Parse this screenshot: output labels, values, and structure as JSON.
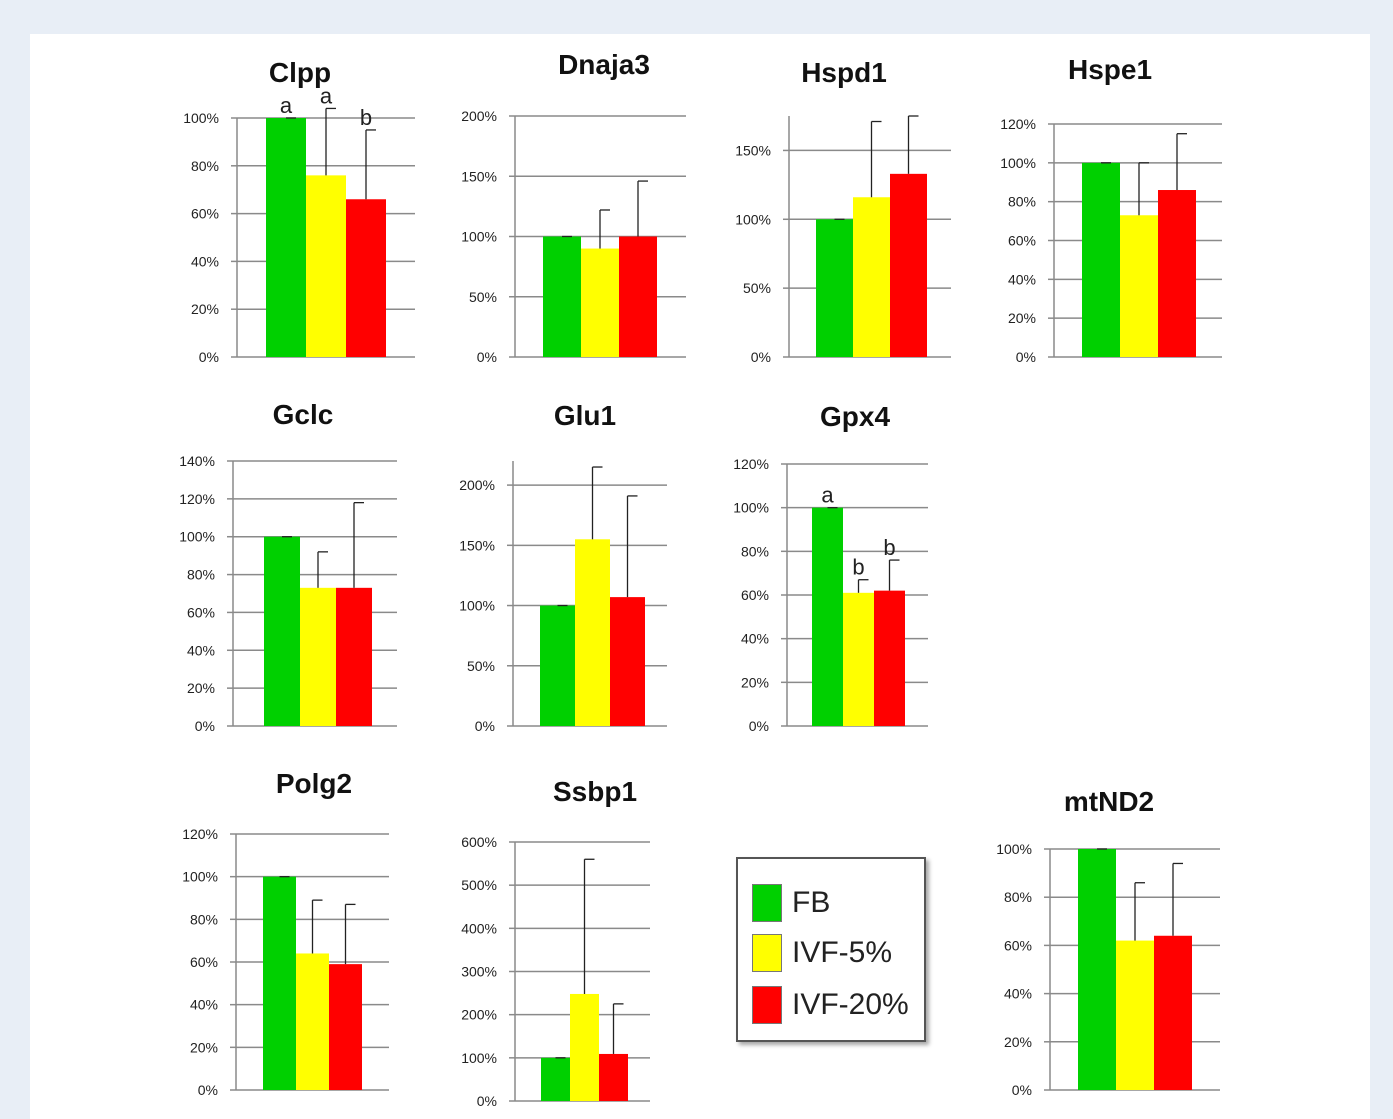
{
  "colors": {
    "FB": "#00d000",
    "IVF-5%": "#ffff00",
    "IVF-20%": "#ff0000"
  },
  "legend": {
    "items": [
      {
        "label": "FB",
        "color": "#00d000"
      },
      {
        "label": "IVF-5%",
        "color": "#ffff00"
      },
      {
        "label": "IVF-20%",
        "color": "#ff0000"
      }
    ]
  },
  "chart_data": [
    {
      "type": "bar",
      "title": "Clpp",
      "categories": [
        "FB",
        "IVF-5%",
        "IVF-20%"
      ],
      "values": [
        100,
        76,
        66
      ],
      "errors": [
        0,
        28,
        29
      ],
      "ylim": [
        0,
        100
      ],
      "yticks": [
        0,
        20,
        40,
        60,
        80,
        100
      ],
      "yticklabels": [
        "0%",
        "20%",
        "40%",
        "60%",
        "80%",
        "100%"
      ],
      "annotations": [
        "a",
        "a",
        "b"
      ],
      "grid": true
    },
    {
      "type": "bar",
      "title": "Dnaja3",
      "categories": [
        "FB",
        "IVF-5%",
        "IVF-20%"
      ],
      "values": [
        100,
        90,
        100
      ],
      "errors": [
        0,
        32,
        46
      ],
      "ylim": [
        0,
        200
      ],
      "yticks": [
        0,
        50,
        100,
        150,
        200
      ],
      "yticklabels": [
        "0%",
        "50%",
        "100%",
        "150%",
        "200%"
      ],
      "annotations": [
        "",
        "",
        ""
      ],
      "grid": true
    },
    {
      "type": "bar",
      "title": "Hspd1",
      "categories": [
        "FB",
        "IVF-5%",
        "IVF-20%"
      ],
      "values": [
        100,
        116,
        133
      ],
      "errors": [
        0,
        55,
        42
      ],
      "ylim": [
        0,
        175
      ],
      "yticks": [
        0,
        50,
        100,
        150
      ],
      "yticklabels": [
        "0%",
        "50%",
        "100%",
        "150%"
      ],
      "annotations": [
        "",
        "",
        ""
      ],
      "grid": true
    },
    {
      "type": "bar",
      "title": "Hspe1",
      "categories": [
        "FB",
        "IVF-5%",
        "IVF-20%"
      ],
      "values": [
        100,
        73,
        86
      ],
      "errors": [
        0,
        27,
        29
      ],
      "ylim": [
        0,
        120
      ],
      "yticks": [
        0,
        20,
        40,
        60,
        80,
        100,
        120
      ],
      "yticklabels": [
        "0%",
        "20%",
        "40%",
        "60%",
        "80%",
        "100%",
        "120%"
      ],
      "annotations": [
        "",
        "",
        ""
      ],
      "grid": true
    },
    {
      "type": "bar",
      "title": "Gclc",
      "categories": [
        "FB",
        "IVF-5%",
        "IVF-20%"
      ],
      "values": [
        100,
        73,
        73
      ],
      "errors": [
        0,
        19,
        45
      ],
      "ylim": [
        0,
        140
      ],
      "yticks": [
        0,
        20,
        40,
        60,
        80,
        100,
        120,
        140
      ],
      "yticklabels": [
        "0%",
        "20%",
        "40%",
        "60%",
        "80%",
        "100%",
        "120%",
        "140%"
      ],
      "annotations": [
        "",
        "",
        ""
      ],
      "grid": true
    },
    {
      "type": "bar",
      "title": "Glu1",
      "categories": [
        "FB",
        "IVF-5%",
        "IVF-20%"
      ],
      "values": [
        100,
        155,
        107
      ],
      "errors": [
        0,
        60,
        84
      ],
      "ylim": [
        0,
        220
      ],
      "yticks": [
        0,
        50,
        100,
        150,
        200
      ],
      "yticklabels": [
        "0%",
        "50%",
        "100%",
        "150%",
        "200%"
      ],
      "annotations": [
        "",
        "",
        ""
      ],
      "grid": true
    },
    {
      "type": "bar",
      "title": "Gpx4",
      "categories": [
        "FB",
        "IVF-5%",
        "IVF-20%"
      ],
      "values": [
        100,
        61,
        62
      ],
      "errors": [
        0,
        6,
        14
      ],
      "ylim": [
        0,
        120
      ],
      "yticks": [
        0,
        20,
        40,
        60,
        80,
        100,
        120
      ],
      "yticklabels": [
        "0%",
        "20%",
        "40%",
        "60%",
        "80%",
        "100%",
        "120%"
      ],
      "annotations": [
        "a",
        "b",
        "b"
      ],
      "grid": true
    },
    {
      "type": "bar",
      "title": "Polg2",
      "categories": [
        "FB",
        "IVF-5%",
        "IVF-20%"
      ],
      "values": [
        100,
        64,
        59
      ],
      "errors": [
        0,
        25,
        28
      ],
      "ylim": [
        0,
        120
      ],
      "yticks": [
        0,
        20,
        40,
        60,
        80,
        100,
        120
      ],
      "yticklabels": [
        "0%",
        "20%",
        "40%",
        "60%",
        "80%",
        "100%",
        "120%"
      ],
      "annotations": [
        "",
        "",
        ""
      ],
      "grid": true
    },
    {
      "type": "bar",
      "title": "Ssbp1",
      "categories": [
        "FB",
        "IVF-5%",
        "IVF-20%"
      ],
      "values": [
        100,
        248,
        109
      ],
      "errors": [
        0,
        312,
        116
      ],
      "ylim": [
        0,
        600
      ],
      "yticks": [
        0,
        100,
        200,
        300,
        400,
        500,
        600
      ],
      "yticklabels": [
        "0%",
        "100%",
        "200%",
        "300%",
        "400%",
        "500%",
        "600%"
      ],
      "annotations": [
        "",
        "",
        ""
      ],
      "grid": true
    },
    {
      "type": "bar",
      "title": "mtND2",
      "categories": [
        "FB",
        "IVF-5%",
        "IVF-20%"
      ],
      "values": [
        100,
        62,
        64
      ],
      "errors": [
        0,
        24,
        30
      ],
      "ylim": [
        0,
        100
      ],
      "yticks": [
        0,
        20,
        40,
        60,
        80,
        100
      ],
      "yticklabels": [
        "0%",
        "20%",
        "40%",
        "60%",
        "80%",
        "100%"
      ],
      "annotations": [
        "",
        "",
        ""
      ],
      "grid": true
    }
  ]
}
